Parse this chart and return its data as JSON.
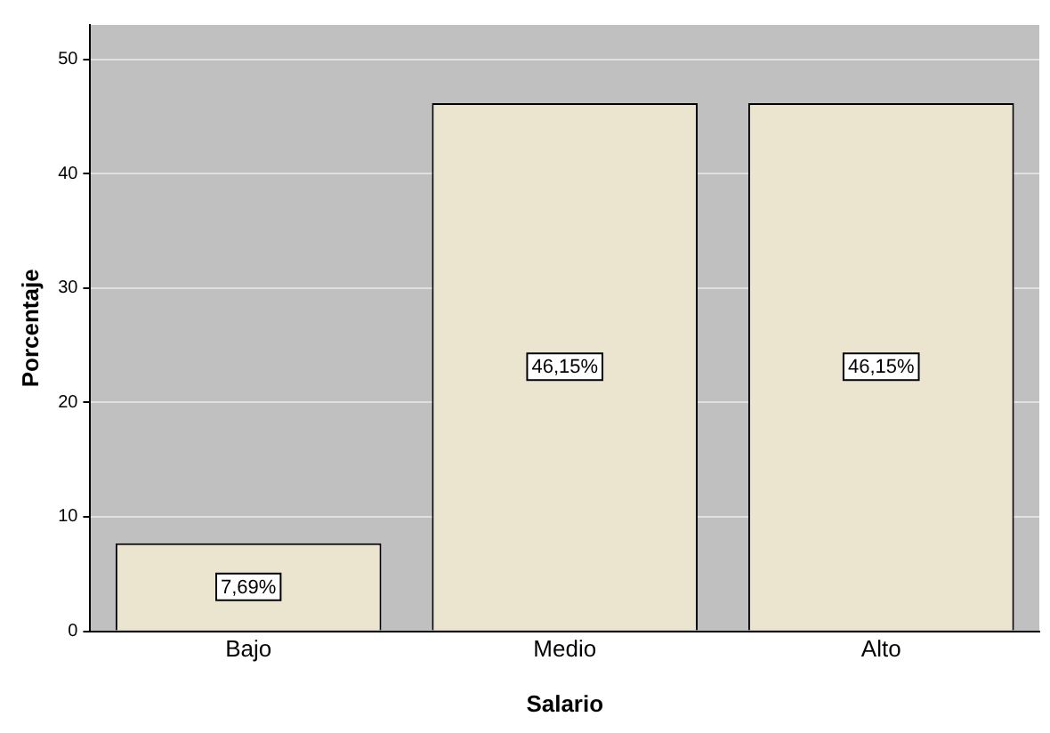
{
  "chart_data": {
    "type": "bar",
    "xlabel": "Salario",
    "ylabel": "Porcentaje",
    "categories": [
      "Bajo",
      "Medio",
      "Alto"
    ],
    "values": [
      7.69,
      46.15,
      46.15
    ],
    "value_labels": [
      "7,69%",
      "46,15%",
      "46,15%"
    ],
    "color": "#ebe4cf",
    "ylim": [
      0,
      53
    ],
    "yticks": [
      0,
      10,
      20,
      30,
      40,
      50
    ],
    "grid": "y",
    "legend": false
  }
}
